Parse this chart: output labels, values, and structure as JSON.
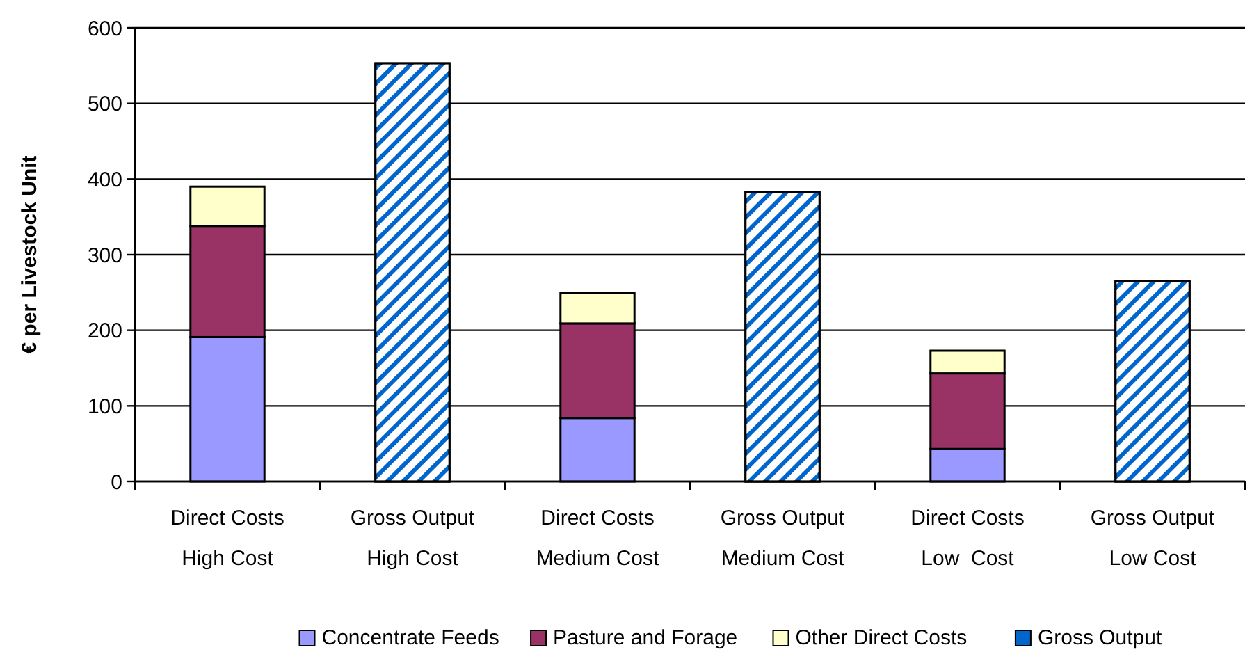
{
  "chart_data": {
    "type": "bar",
    "stacked": true,
    "ylabel": "€ per Livestock Unit",
    "categories": [
      "Direct Costs High Cost",
      "Gross Output High Cost",
      "Direct Costs Medium Cost",
      "Gross Output Medium Cost",
      "Direct Costs Low  Cost",
      "Gross Output Low Cost"
    ],
    "series": [
      {
        "name": "Concentrate Feeds",
        "color": "#9999ff",
        "values": [
          191,
          null,
          84,
          null,
          43,
          null
        ]
      },
      {
        "name": "Pasture and Forage",
        "color": "#993366",
        "values": [
          147,
          null,
          125,
          null,
          100,
          null
        ]
      },
      {
        "name": "Other Direct Costs",
        "color": "#ffffcc",
        "values": [
          52,
          null,
          40,
          null,
          30,
          null
        ]
      },
      {
        "name": "Gross Output",
        "color": "#0066cc",
        "values": [
          null,
          553,
          null,
          383,
          null,
          265
        ]
      }
    ],
    "ylim": [
      0,
      600
    ],
    "yticks": [
      0,
      100,
      200,
      300,
      400,
      500,
      600
    ],
    "grid": "y",
    "legend": "bottom"
  }
}
